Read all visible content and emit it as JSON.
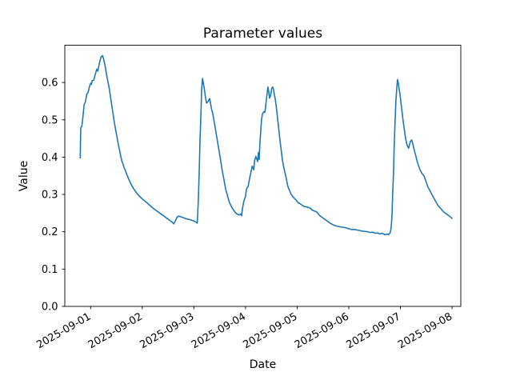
{
  "chart_data": {
    "type": "line",
    "title": "Parameter values",
    "xlabel": "Date",
    "ylabel": "Value",
    "line_color": "#1f77b4",
    "background_color": "#ffffff",
    "grid": false,
    "legend": "none",
    "x_unit": "days since 2025-09-01 00:00",
    "xlim_days": [
      -0.5,
      7.17
    ],
    "ylim": [
      0.0,
      0.7
    ],
    "x_tick_rotation_deg": 30,
    "x_ticks": [
      {
        "t": 0,
        "label": "2025-09-01"
      },
      {
        "t": 1,
        "label": "2025-09-02"
      },
      {
        "t": 2,
        "label": "2025-09-03"
      },
      {
        "t": 3,
        "label": "2025-09-04"
      },
      {
        "t": 4,
        "label": "2025-09-05"
      },
      {
        "t": 5,
        "label": "2025-09-06"
      },
      {
        "t": 6,
        "label": "2025-09-07"
      },
      {
        "t": 7,
        "label": "2025-09-08"
      }
    ],
    "y_ticks": [
      {
        "v": 0.0,
        "label": "0.0"
      },
      {
        "v": 0.1,
        "label": "0.1"
      },
      {
        "v": 0.2,
        "label": "0.2"
      },
      {
        "v": 0.3,
        "label": "0.3"
      },
      {
        "v": 0.4,
        "label": "0.4"
      },
      {
        "v": 0.5,
        "label": "0.5"
      },
      {
        "v": 0.6,
        "label": "0.6"
      }
    ],
    "points": [
      [
        -0.201,
        0.398
      ],
      [
        -0.195,
        0.45
      ],
      [
        -0.19,
        0.478
      ],
      [
        -0.17,
        0.483
      ],
      [
        -0.155,
        0.5
      ],
      [
        -0.14,
        0.52
      ],
      [
        -0.124,
        0.542
      ],
      [
        -0.108,
        0.545
      ],
      [
        -0.09,
        0.556
      ],
      [
        -0.077,
        0.568
      ],
      [
        -0.046,
        0.574
      ],
      [
        -0.03,
        0.585
      ],
      [
        0.0,
        0.598
      ],
      [
        0.015,
        0.595
      ],
      [
        0.03,
        0.605
      ],
      [
        0.06,
        0.606
      ],
      [
        0.09,
        0.622
      ],
      [
        0.12,
        0.636
      ],
      [
        0.14,
        0.631
      ],
      [
        0.17,
        0.652
      ],
      [
        0.2,
        0.668
      ],
      [
        0.23,
        0.672
      ],
      [
        0.25,
        0.664
      ],
      [
        0.28,
        0.645
      ],
      [
        0.31,
        0.62
      ],
      [
        0.36,
        0.585
      ],
      [
        0.4,
        0.548
      ],
      [
        0.43,
        0.52
      ],
      [
        0.46,
        0.492
      ],
      [
        0.5,
        0.462
      ],
      [
        0.54,
        0.432
      ],
      [
        0.57,
        0.412
      ],
      [
        0.6,
        0.392
      ],
      [
        0.65,
        0.372
      ],
      [
        0.7,
        0.354
      ],
      [
        0.73,
        0.344
      ],
      [
        0.77,
        0.331
      ],
      [
        0.82,
        0.318
      ],
      [
        0.88,
        0.306
      ],
      [
        0.94,
        0.296
      ],
      [
        1.01,
        0.287
      ],
      [
        1.08,
        0.279
      ],
      [
        1.16,
        0.269
      ],
      [
        1.24,
        0.26
      ],
      [
        1.32,
        0.252
      ],
      [
        1.39,
        0.245
      ],
      [
        1.47,
        0.237
      ],
      [
        1.53,
        0.231
      ],
      [
        1.58,
        0.226
      ],
      [
        1.61,
        0.221
      ],
      [
        1.64,
        0.229
      ],
      [
        1.67,
        0.238
      ],
      [
        1.7,
        0.242
      ],
      [
        1.75,
        0.24
      ],
      [
        1.81,
        0.237
      ],
      [
        1.87,
        0.234
      ],
      [
        1.94,
        0.232
      ],
      [
        2.0,
        0.229
      ],
      [
        2.04,
        0.226
      ],
      [
        2.065,
        0.223
      ],
      [
        2.075,
        0.248
      ],
      [
        2.09,
        0.3
      ],
      [
        2.105,
        0.37
      ],
      [
        2.12,
        0.45
      ],
      [
        2.14,
        0.53
      ],
      [
        2.15,
        0.58
      ],
      [
        2.167,
        0.611
      ],
      [
        2.18,
        0.601
      ],
      [
        2.2,
        0.585
      ],
      [
        2.215,
        0.57
      ],
      [
        2.23,
        0.556
      ],
      [
        2.245,
        0.545
      ],
      [
        2.275,
        0.549
      ],
      [
        2.305,
        0.557
      ],
      [
        2.32,
        0.546
      ],
      [
        2.34,
        0.53
      ],
      [
        2.37,
        0.514
      ],
      [
        2.4,
        0.49
      ],
      [
        2.43,
        0.465
      ],
      [
        2.46,
        0.44
      ],
      [
        2.49,
        0.415
      ],
      [
        2.52,
        0.39
      ],
      [
        2.55,
        0.363
      ],
      [
        2.585,
        0.338
      ],
      [
        2.615,
        0.315
      ],
      [
        2.65,
        0.297
      ],
      [
        2.69,
        0.278
      ],
      [
        2.74,
        0.264
      ],
      [
        2.79,
        0.254
      ],
      [
        2.83,
        0.248
      ],
      [
        2.88,
        0.245
      ],
      [
        2.91,
        0.248
      ],
      [
        2.925,
        0.243
      ],
      [
        2.94,
        0.262
      ],
      [
        2.97,
        0.283
      ],
      [
        3.0,
        0.295
      ],
      [
        3.02,
        0.315
      ],
      [
        3.05,
        0.321
      ],
      [
        3.08,
        0.343
      ],
      [
        3.1,
        0.356
      ],
      [
        3.13,
        0.376
      ],
      [
        3.145,
        0.371
      ],
      [
        3.16,
        0.366
      ],
      [
        3.175,
        0.39
      ],
      [
        3.2,
        0.402
      ],
      [
        3.22,
        0.394
      ],
      [
        3.235,
        0.388
      ],
      [
        3.25,
        0.413
      ],
      [
        3.265,
        0.394
      ],
      [
        3.28,
        0.44
      ],
      [
        3.31,
        0.5
      ],
      [
        3.33,
        0.517
      ],
      [
        3.36,
        0.522
      ],
      [
        3.375,
        0.52
      ],
      [
        3.39,
        0.535
      ],
      [
        3.405,
        0.556
      ],
      [
        3.435,
        0.588
      ],
      [
        3.45,
        0.576
      ],
      [
        3.465,
        0.558
      ],
      [
        3.485,
        0.565
      ],
      [
        3.51,
        0.585
      ],
      [
        3.53,
        0.588
      ],
      [
        3.545,
        0.58
      ],
      [
        3.56,
        0.566
      ],
      [
        3.575,
        0.556
      ],
      [
        3.59,
        0.542
      ],
      [
        3.62,
        0.506
      ],
      [
        3.65,
        0.468
      ],
      [
        3.67,
        0.442
      ],
      [
        3.7,
        0.41
      ],
      [
        3.715,
        0.392
      ],
      [
        3.745,
        0.37
      ],
      [
        3.78,
        0.349
      ],
      [
        3.82,
        0.322
      ],
      [
        3.855,
        0.31
      ],
      [
        3.885,
        0.3
      ],
      [
        3.93,
        0.292
      ],
      [
        3.98,
        0.285
      ],
      [
        4.02,
        0.278
      ],
      [
        4.09,
        0.272
      ],
      [
        4.13,
        0.268
      ],
      [
        4.2,
        0.266
      ],
      [
        4.24,
        0.264
      ],
      [
        4.27,
        0.262
      ],
      [
        4.29,
        0.258
      ],
      [
        4.33,
        0.256
      ],
      [
        4.38,
        0.253
      ],
      [
        4.44,
        0.243
      ],
      [
        4.49,
        0.238
      ],
      [
        4.54,
        0.233
      ],
      [
        4.6,
        0.227
      ],
      [
        4.64,
        0.223
      ],
      [
        4.69,
        0.219
      ],
      [
        4.75,
        0.216
      ],
      [
        4.81,
        0.214
      ],
      [
        4.88,
        0.212
      ],
      [
        4.94,
        0.211
      ],
      [
        5.0,
        0.208
      ],
      [
        5.06,
        0.206
      ],
      [
        5.12,
        0.206
      ],
      [
        5.19,
        0.204
      ],
      [
        5.25,
        0.202
      ],
      [
        5.31,
        0.201
      ],
      [
        5.37,
        0.2
      ],
      [
        5.42,
        0.198
      ],
      [
        5.46,
        0.199
      ],
      [
        5.51,
        0.196
      ],
      [
        5.56,
        0.197
      ],
      [
        5.6,
        0.194
      ],
      [
        5.65,
        0.196
      ],
      [
        5.7,
        0.192
      ],
      [
        5.74,
        0.194
      ],
      [
        5.77,
        0.192
      ],
      [
        5.805,
        0.198
      ],
      [
        5.82,
        0.21
      ],
      [
        5.836,
        0.24
      ],
      [
        5.85,
        0.3
      ],
      [
        5.867,
        0.36
      ],
      [
        5.88,
        0.43
      ],
      [
        5.898,
        0.5
      ],
      [
        5.913,
        0.55
      ],
      [
        5.93,
        0.585
      ],
      [
        5.944,
        0.608
      ],
      [
        5.96,
        0.598
      ],
      [
        5.99,
        0.57
      ],
      [
        6.02,
        0.536
      ],
      [
        6.05,
        0.5
      ],
      [
        6.07,
        0.48
      ],
      [
        6.1,
        0.45
      ],
      [
        6.13,
        0.432
      ],
      [
        6.16,
        0.424
      ],
      [
        6.19,
        0.441
      ],
      [
        6.22,
        0.446
      ],
      [
        6.25,
        0.43
      ],
      [
        6.27,
        0.418
      ],
      [
        6.3,
        0.403
      ],
      [
        6.33,
        0.386
      ],
      [
        6.38,
        0.366
      ],
      [
        6.42,
        0.356
      ],
      [
        6.46,
        0.349
      ],
      [
        6.53,
        0.321
      ],
      [
        6.64,
        0.292
      ],
      [
        6.73,
        0.27
      ],
      [
        6.84,
        0.253
      ],
      [
        6.95,
        0.242
      ],
      [
        7.0,
        0.236
      ]
    ]
  }
}
